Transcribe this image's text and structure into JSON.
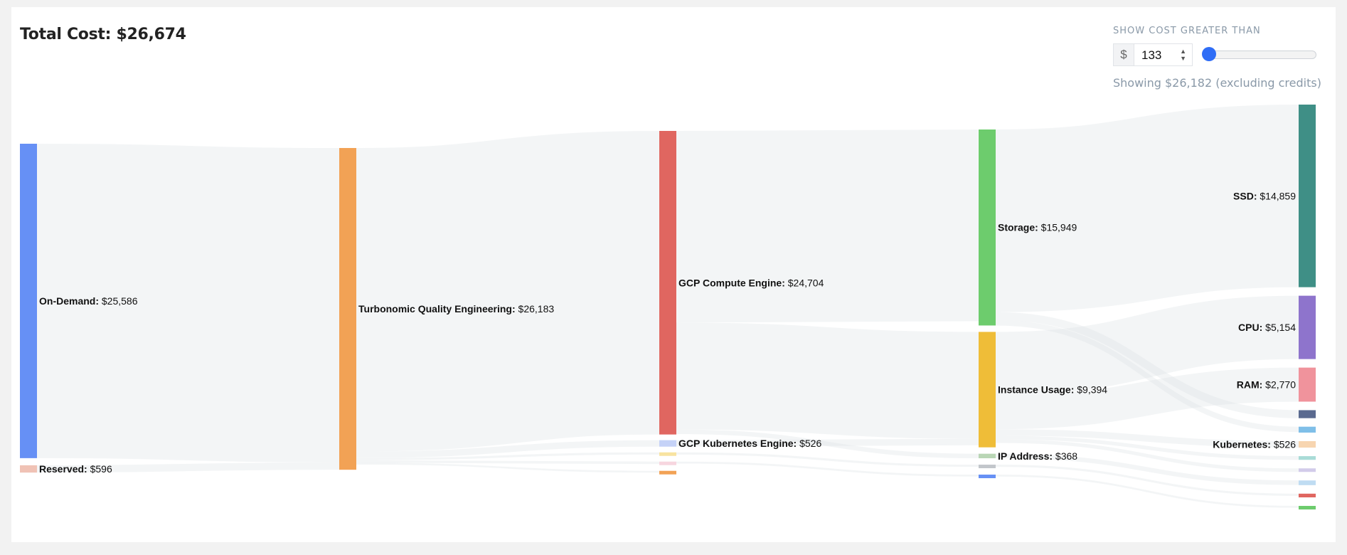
{
  "header": {
    "total_cost": "Total Cost: $26,674"
  },
  "filter": {
    "label": "SHOW COST GREATER THAN",
    "currency": "$",
    "threshold": "133",
    "slider_fraction": 0.04,
    "showing": "Showing $26,182 (excluding credits)"
  },
  "chart_data": {
    "type": "sankey",
    "columns": [
      [
        {
          "id": "ondemand",
          "name": "On-Demand",
          "label": "On-Demand:",
          "value_label": "$25,586",
          "value": 25586,
          "color": "#6690f5"
        },
        {
          "id": "reserved",
          "name": "Reserved",
          "label": "Reserved:",
          "value_label": "$596",
          "value": 596,
          "color": "#f0c2b5"
        }
      ],
      [
        {
          "id": "tqe",
          "name": "Turbonomic Quality Engineering",
          "label": "Turbonomic Quality Engineering:",
          "value_label": "$26,183",
          "value": 26183,
          "color": "#f2a255"
        }
      ],
      [
        {
          "id": "gce",
          "name": "GCP Compute Engine",
          "label": "GCP Compute Engine:",
          "value_label": "$24,704",
          "value": 24704,
          "color": "#e06660"
        },
        {
          "id": "gke",
          "name": "GCP Kubernetes Engine",
          "label": "GCP Kubernetes Engine:",
          "value_label": "$526",
          "value": 526,
          "color": "#c5d2f7"
        },
        {
          "id": "s3",
          "name": "",
          "label": "",
          "value_label": "",
          "value": 180,
          "color": "#f8e3a0"
        },
        {
          "id": "s4",
          "name": "",
          "label": "",
          "value_label": "",
          "value": 200,
          "color": "#f7d6df"
        },
        {
          "id": "s5",
          "name": "",
          "label": "",
          "value_label": "",
          "value": 150,
          "color": "#f2a255"
        }
      ],
      [
        {
          "id": "storage",
          "name": "Storage",
          "label": "Storage:",
          "value_label": "$15,949",
          "value": 15949,
          "color": "#6dcc6d"
        },
        {
          "id": "instance",
          "name": "Instance Usage",
          "label": "Instance Usage:",
          "value_label": "$9,394",
          "value": 9394,
          "color": "#efbd38"
        },
        {
          "id": "ip",
          "name": "IP Address",
          "label": "IP Address:",
          "value_label": "$368",
          "value": 368,
          "color": "#b9d6b5"
        },
        {
          "id": "t4",
          "name": "",
          "label": "",
          "value_label": "",
          "value": 180,
          "color": "#c2c6cb"
        },
        {
          "id": "t5",
          "name": "",
          "label": "",
          "value_label": "",
          "value": 160,
          "color": "#6690f5"
        }
      ],
      [
        {
          "id": "ssd",
          "name": "SSD",
          "label": "SSD:",
          "value_label": "$14,859",
          "value": 14859,
          "color": "#3f8f86"
        },
        {
          "id": "cpu",
          "name": "CPU",
          "label": "CPU:",
          "value_label": "$5,154",
          "value": 5154,
          "color": "#8e74cc"
        },
        {
          "id": "ram",
          "name": "RAM",
          "label": "RAM:",
          "value_label": "$2,770",
          "value": 2770,
          "color": "#f0939c"
        },
        {
          "id": "u4",
          "name": "",
          "label": "",
          "value_label": "",
          "value": 650,
          "color": "#5a6a8f"
        },
        {
          "id": "u5",
          "name": "",
          "label": "",
          "value_label": "",
          "value": 480,
          "color": "#7fbfe8"
        },
        {
          "id": "kubernetes",
          "name": "Kubernetes",
          "label": "Kubernetes:",
          "value_label": "$526",
          "value": 526,
          "color": "#f7d5b0"
        },
        {
          "id": "u7",
          "name": "",
          "label": "",
          "value_label": "",
          "value": 300,
          "color": "#a9dcd7"
        },
        {
          "id": "u8",
          "name": "",
          "label": "",
          "value_label": "",
          "value": 290,
          "color": "#d2cbea"
        },
        {
          "id": "u9",
          "name": "",
          "label": "",
          "value_label": "",
          "value": 380,
          "color": "#bfdcf2"
        },
        {
          "id": "u10",
          "name": "",
          "label": "",
          "value_label": "",
          "value": 300,
          "color": "#e06660"
        },
        {
          "id": "u11",
          "name": "",
          "label": "",
          "value_label": "",
          "value": 280,
          "color": "#6dcc6d"
        }
      ]
    ],
    "links": [
      {
        "source": "ondemand",
        "target": "tqe",
        "value": 25586
      },
      {
        "source": "reserved",
        "target": "tqe",
        "value": 596
      },
      {
        "source": "tqe",
        "target": "gce",
        "value": 24704
      },
      {
        "source": "tqe",
        "target": "gke",
        "value": 526
      },
      {
        "source": "tqe",
        "target": "s3",
        "value": 180
      },
      {
        "source": "tqe",
        "target": "s4",
        "value": 200
      },
      {
        "source": "tqe",
        "target": "s5",
        "value": 150
      },
      {
        "source": "gce",
        "target": "storage",
        "value": 15600
      },
      {
        "source": "gce",
        "target": "instance",
        "value": 8700
      },
      {
        "source": "gce",
        "target": "ip",
        "value": 368
      },
      {
        "source": "gke",
        "target": "instance",
        "value": 526
      },
      {
        "source": "s3",
        "target": "t4",
        "value": 180
      },
      {
        "source": "s4",
        "target": "t5",
        "value": 160
      },
      {
        "source": "storage",
        "target": "ssd",
        "value": 14859
      },
      {
        "source": "storage",
        "target": "u4",
        "value": 650
      },
      {
        "source": "storage",
        "target": "u5",
        "value": 440
      },
      {
        "source": "instance",
        "target": "cpu",
        "value": 5154
      },
      {
        "source": "instance",
        "target": "ram",
        "value": 2770
      },
      {
        "source": "instance",
        "target": "kubernetes",
        "value": 526
      },
      {
        "source": "instance",
        "target": "u7",
        "value": 300
      },
      {
        "source": "instance",
        "target": "u8",
        "value": 290
      },
      {
        "source": "ip",
        "target": "u9",
        "value": 368
      },
      {
        "source": "t4",
        "target": "u10",
        "value": 180
      },
      {
        "source": "t5",
        "target": "u11",
        "value": 160
      }
    ]
  }
}
